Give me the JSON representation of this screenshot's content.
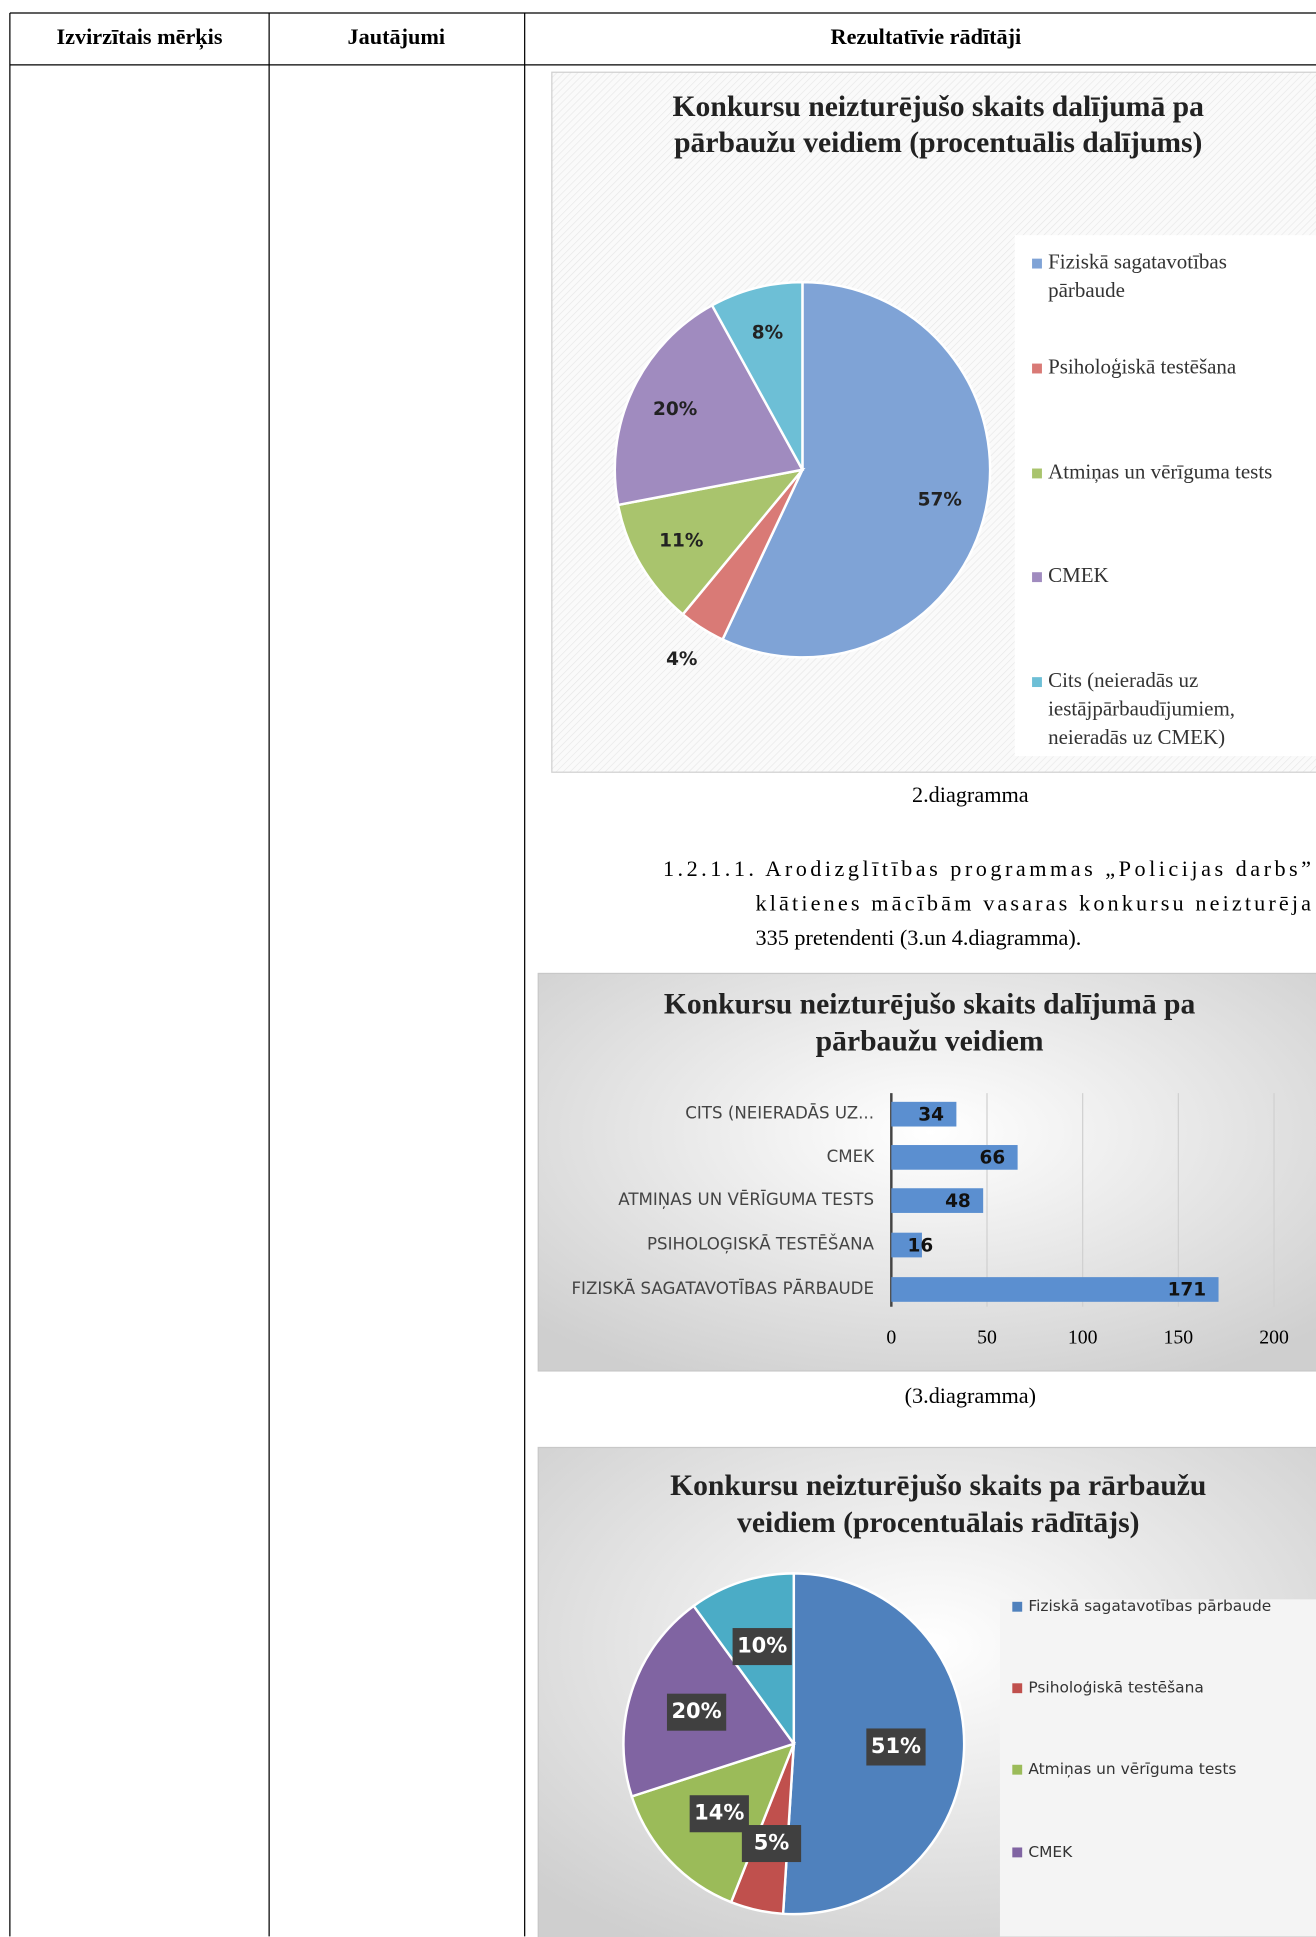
{
  "table": {
    "headers": [
      "Izvirzītais mērķis",
      "Jautājumi",
      "Rezultatīvie rādītāji"
    ]
  },
  "captions": [
    "2.diagramma",
    "(3.diagramma)"
  ],
  "paragraph": {
    "lines": [
      "1.2.1.1. Arodizglītības programmas „Policijas darbs”",
      "klātienes mācībām vasaras konkursu neizturēja",
      "335 pretendenti (3.un 4.diagramma)."
    ]
  },
  "chart_data": [
    {
      "type": "pie",
      "title": [
        "Konkursu neizturējušo skaits dalījumā pa",
        "pārbaužu veidiem (procentuālis dalījums)"
      ],
      "categories": [
        "Fiziskā sagatavotības pārbaude",
        "Psiholoģiskā testēšana",
        "Atmiņas un vērīguma tests",
        "CMEK",
        "Cits (neieradās uz iestājpārbaudījumiem, neieradās uz CMEK)"
      ],
      "values": [
        57,
        4,
        11,
        20,
        8
      ],
      "value_labels": [
        "57%",
        "4%",
        "11%",
        "20%",
        "8%"
      ],
      "colors": [
        "#7fa3d6",
        "#d97a76",
        "#a9c46d",
        "#a08bbf",
        "#6dbfd6"
      ],
      "legend": "right"
    },
    {
      "type": "barh",
      "title": [
        "Konkursu neizturējušo skaits dalījumā pa",
        "pārbaužu veidiem"
      ],
      "categories": [
        "FIZISKĀ SAGATAVOTĪBAS PĀRBAUDE",
        "PSIHOLOĢISKĀ TESTĒŠANA",
        "ATMIŅAS UN VĒRĪGUMA TESTS",
        "CMEK",
        "CITS (NEIERADĀS UZ..."
      ],
      "values": [
        171,
        16,
        48,
        66,
        34
      ],
      "color": "#5b8fd0",
      "xlim": [
        0,
        200
      ],
      "xticks": [
        0,
        50,
        100,
        150,
        200
      ],
      "grid": true
    },
    {
      "type": "pie",
      "title": [
        "Konkursu neizturējušo skaits pa rārbaužu",
        "veidiem (procentuālais rādītājs)"
      ],
      "categories": [
        "Fiziskā sagatavotības pārbaude",
        "Psiholoģiskā testēšana",
        "Atmiņas un vērīguma tests",
        "CMEK",
        null
      ],
      "values": [
        51,
        5,
        14,
        20,
        10
      ],
      "value_labels": [
        "51%",
        "5%",
        "14%",
        "20%",
        "10%"
      ],
      "colors": [
        "#4f81bd",
        "#c0504d",
        "#9bbb59",
        "#8064a2",
        "#4bacc6"
      ],
      "legend": "right"
    }
  ]
}
